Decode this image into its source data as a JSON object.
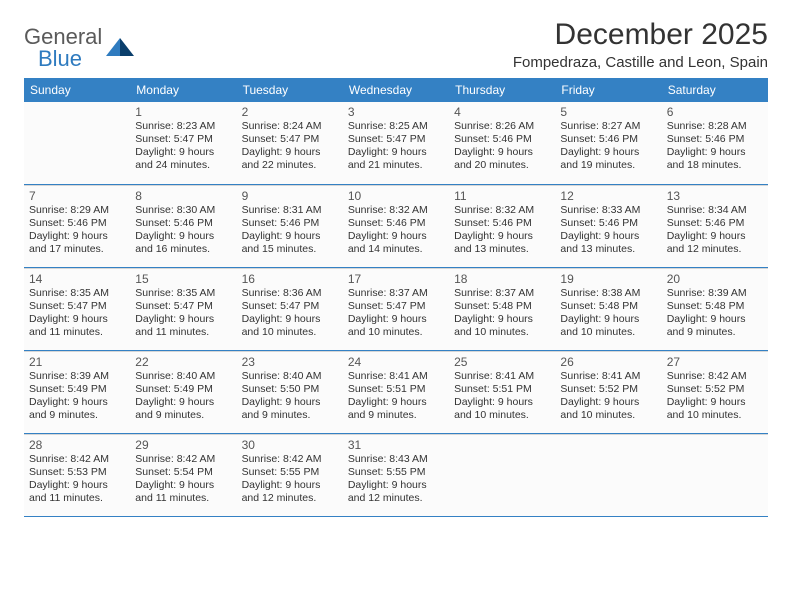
{
  "brand": {
    "name1": "General",
    "name2": "Blue"
  },
  "title": "December 2025",
  "location": "Fompedraza, Castille and Leon, Spain",
  "colors": {
    "header_bg": "#3481c4",
    "header_text": "#ffffff",
    "border": "#3481c4",
    "cell_border": "#d6d6d6",
    "text": "#333333",
    "logo_gray": "#5a5a5a",
    "logo_blue": "#2f7bbf"
  },
  "day_names": [
    "Sunday",
    "Monday",
    "Tuesday",
    "Wednesday",
    "Thursday",
    "Friday",
    "Saturday"
  ],
  "first_weekday_index": 1,
  "days": [
    {
      "n": 1,
      "sr": "8:23 AM",
      "ss": "5:47 PM",
      "dl": "9 hours and 24 minutes."
    },
    {
      "n": 2,
      "sr": "8:24 AM",
      "ss": "5:47 PM",
      "dl": "9 hours and 22 minutes."
    },
    {
      "n": 3,
      "sr": "8:25 AM",
      "ss": "5:47 PM",
      "dl": "9 hours and 21 minutes."
    },
    {
      "n": 4,
      "sr": "8:26 AM",
      "ss": "5:46 PM",
      "dl": "9 hours and 20 minutes."
    },
    {
      "n": 5,
      "sr": "8:27 AM",
      "ss": "5:46 PM",
      "dl": "9 hours and 19 minutes."
    },
    {
      "n": 6,
      "sr": "8:28 AM",
      "ss": "5:46 PM",
      "dl": "9 hours and 18 minutes."
    },
    {
      "n": 7,
      "sr": "8:29 AM",
      "ss": "5:46 PM",
      "dl": "9 hours and 17 minutes."
    },
    {
      "n": 8,
      "sr": "8:30 AM",
      "ss": "5:46 PM",
      "dl": "9 hours and 16 minutes."
    },
    {
      "n": 9,
      "sr": "8:31 AM",
      "ss": "5:46 PM",
      "dl": "9 hours and 15 minutes."
    },
    {
      "n": 10,
      "sr": "8:32 AM",
      "ss": "5:46 PM",
      "dl": "9 hours and 14 minutes."
    },
    {
      "n": 11,
      "sr": "8:32 AM",
      "ss": "5:46 PM",
      "dl": "9 hours and 13 minutes."
    },
    {
      "n": 12,
      "sr": "8:33 AM",
      "ss": "5:46 PM",
      "dl": "9 hours and 13 minutes."
    },
    {
      "n": 13,
      "sr": "8:34 AM",
      "ss": "5:46 PM",
      "dl": "9 hours and 12 minutes."
    },
    {
      "n": 14,
      "sr": "8:35 AM",
      "ss": "5:47 PM",
      "dl": "9 hours and 11 minutes."
    },
    {
      "n": 15,
      "sr": "8:35 AM",
      "ss": "5:47 PM",
      "dl": "9 hours and 11 minutes."
    },
    {
      "n": 16,
      "sr": "8:36 AM",
      "ss": "5:47 PM",
      "dl": "9 hours and 10 minutes."
    },
    {
      "n": 17,
      "sr": "8:37 AM",
      "ss": "5:47 PM",
      "dl": "9 hours and 10 minutes."
    },
    {
      "n": 18,
      "sr": "8:37 AM",
      "ss": "5:48 PM",
      "dl": "9 hours and 10 minutes."
    },
    {
      "n": 19,
      "sr": "8:38 AM",
      "ss": "5:48 PM",
      "dl": "9 hours and 10 minutes."
    },
    {
      "n": 20,
      "sr": "8:39 AM",
      "ss": "5:48 PM",
      "dl": "9 hours and 9 minutes."
    },
    {
      "n": 21,
      "sr": "8:39 AM",
      "ss": "5:49 PM",
      "dl": "9 hours and 9 minutes."
    },
    {
      "n": 22,
      "sr": "8:40 AM",
      "ss": "5:49 PM",
      "dl": "9 hours and 9 minutes."
    },
    {
      "n": 23,
      "sr": "8:40 AM",
      "ss": "5:50 PM",
      "dl": "9 hours and 9 minutes."
    },
    {
      "n": 24,
      "sr": "8:41 AM",
      "ss": "5:51 PM",
      "dl": "9 hours and 9 minutes."
    },
    {
      "n": 25,
      "sr": "8:41 AM",
      "ss": "5:51 PM",
      "dl": "9 hours and 10 minutes."
    },
    {
      "n": 26,
      "sr": "8:41 AM",
      "ss": "5:52 PM",
      "dl": "9 hours and 10 minutes."
    },
    {
      "n": 27,
      "sr": "8:42 AM",
      "ss": "5:52 PM",
      "dl": "9 hours and 10 minutes."
    },
    {
      "n": 28,
      "sr": "8:42 AM",
      "ss": "5:53 PM",
      "dl": "9 hours and 11 minutes."
    },
    {
      "n": 29,
      "sr": "8:42 AM",
      "ss": "5:54 PM",
      "dl": "9 hours and 11 minutes."
    },
    {
      "n": 30,
      "sr": "8:42 AM",
      "ss": "5:55 PM",
      "dl": "9 hours and 12 minutes."
    },
    {
      "n": 31,
      "sr": "8:43 AM",
      "ss": "5:55 PM",
      "dl": "9 hours and 12 minutes."
    }
  ],
  "labels": {
    "sunrise": "Sunrise:",
    "sunset": "Sunset:",
    "daylight": "Daylight:"
  }
}
